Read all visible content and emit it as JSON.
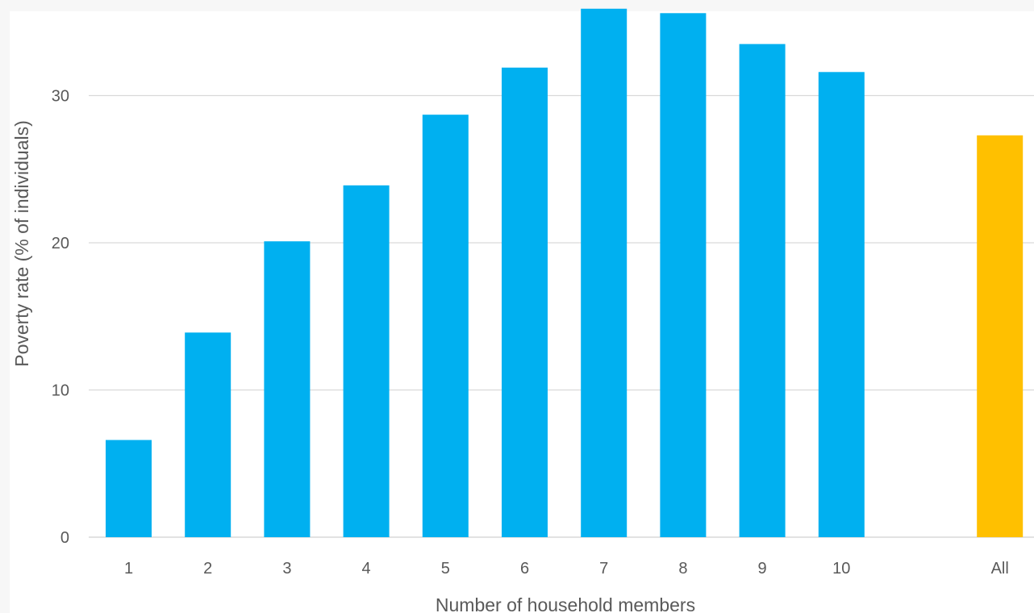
{
  "chart_data": {
    "type": "bar",
    "title": "",
    "xlabel": "Number of household members",
    "ylabel": "Poverty rate (% of individuals)",
    "categories": [
      "1",
      "2",
      "3",
      "4",
      "5",
      "6",
      "7",
      "8",
      "9",
      "10",
      "",
      "All"
    ],
    "values": [
      6.6,
      13.9,
      20.1,
      23.9,
      28.7,
      31.9,
      35.9,
      35.6,
      33.5,
      31.6,
      null,
      27.3
    ],
    "yticks": [
      0,
      10,
      20,
      30
    ],
    "ylim": [
      0,
      35.8
    ],
    "grid": true,
    "legend": "none",
    "colors": {
      "default_bar": "#00b0f0",
      "highlight_bar": "#ffc000",
      "gridline": "#d9d9d9",
      "text": "#595959"
    },
    "highlight_categories": [
      "All"
    ]
  }
}
